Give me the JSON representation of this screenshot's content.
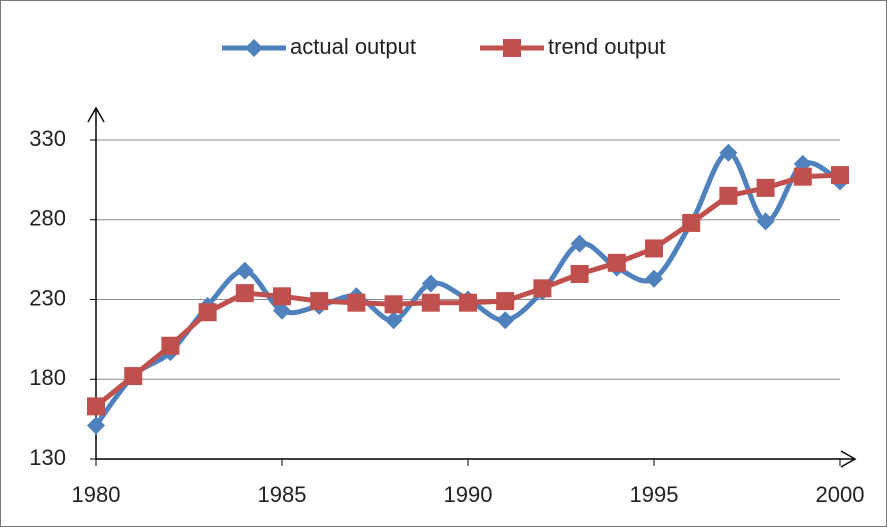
{
  "chart_data": {
    "type": "line",
    "x": [
      1980,
      1981,
      1982,
      1983,
      1984,
      1985,
      1986,
      1987,
      1988,
      1989,
      1990,
      1991,
      1992,
      1993,
      1994,
      1995,
      1996,
      1997,
      1998,
      1999,
      2000
    ],
    "series": [
      {
        "name": "actual output",
        "color": "#4f81bd",
        "marker": "diamond",
        "smooth": true,
        "values": [
          151,
          182,
          197,
          226,
          248,
          223,
          226,
          232,
          217,
          240,
          230,
          217,
          235,
          265,
          250,
          243,
          278,
          322,
          279,
          315,
          304
        ]
      },
      {
        "name": "trend output",
        "color": "#c0504d",
        "marker": "square",
        "smooth": false,
        "values": [
          163,
          182,
          201,
          222,
          234,
          232,
          229,
          228,
          227,
          228,
          228,
          229,
          237,
          246,
          253,
          262,
          278,
          295,
          300,
          307,
          308
        ]
      }
    ],
    "xlim": [
      1980,
      2000
    ],
    "xticks": [
      1980,
      1985,
      1990,
      1995,
      2000
    ],
    "ylim": [
      130,
      330
    ],
    "yticks": [
      130,
      180,
      230,
      280,
      330
    ],
    "grid": true,
    "legend": "top"
  }
}
